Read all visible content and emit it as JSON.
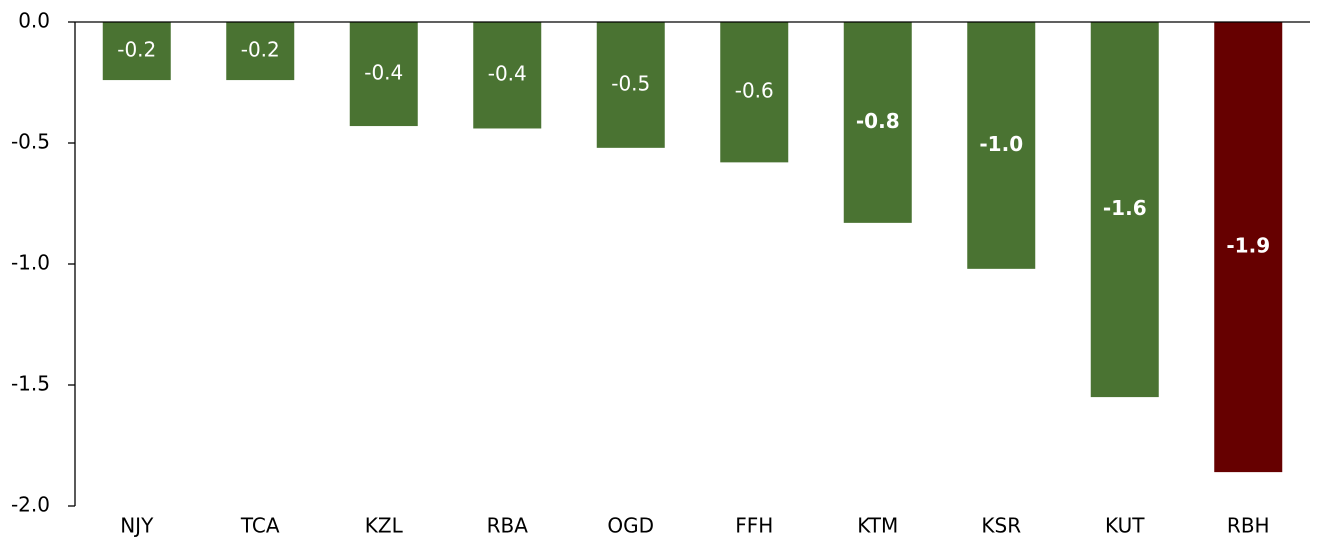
{
  "chart_data": {
    "type": "bar",
    "categories": [
      "NJY",
      "TCA",
      "KZL",
      "RBA",
      "OGD",
      "FFH",
      "KTM",
      "KSR",
      "KUT",
      "RBH"
    ],
    "values": [
      -0.24,
      -0.24,
      -0.43,
      -0.44,
      -0.52,
      -0.58,
      -0.83,
      -1.02,
      -1.55,
      -1.86
    ],
    "value_labels": [
      "-0.2",
      "-0.2",
      "-0.4",
      "-0.4",
      "-0.5",
      "-0.6",
      "-0.8",
      "-1.0",
      "-1.6",
      "-1.9"
    ],
    "colors": [
      "#4a7332",
      "#4a7332",
      "#4a7332",
      "#4a7332",
      "#4a7332",
      "#4a7332",
      "#4a7332",
      "#4a7332",
      "#4a7332",
      "#660000"
    ],
    "bold_labels": [
      false,
      false,
      false,
      false,
      false,
      false,
      true,
      true,
      true,
      true
    ],
    "ylim": [
      -2,
      0
    ],
    "yticks": [
      {
        "value": 0,
        "label": "0.0"
      },
      -0.5,
      {
        "value": -1,
        "label": "-1.0"
      },
      -1.5,
      {
        "value": -2,
        "label": "-2.0"
      }
    ]
  }
}
